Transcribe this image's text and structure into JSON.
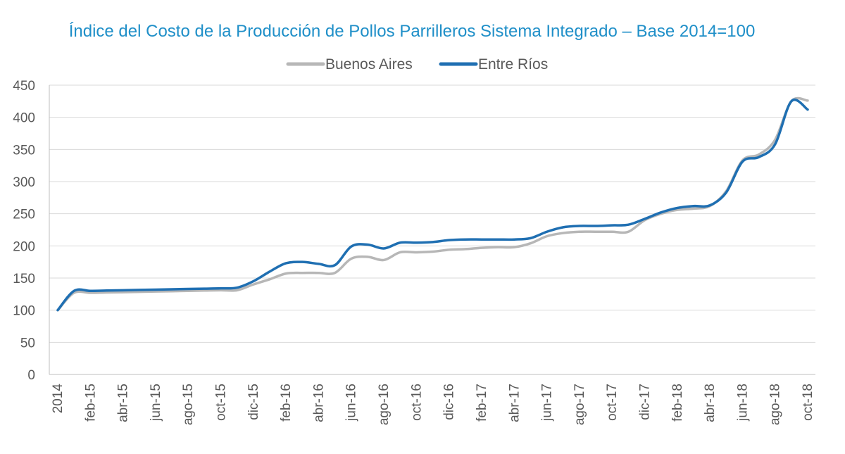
{
  "chart_data": {
    "type": "line",
    "title": "Índice del Costo de la Producción de Pollos Parrilleros Sistema Integrado – Base 2014=100",
    "xlabel": "",
    "ylabel": "",
    "ylim": [
      0,
      450
    ],
    "yticks": [
      0,
      50,
      100,
      150,
      200,
      250,
      300,
      350,
      400,
      450
    ],
    "grid": true,
    "legend_position": "top-center",
    "xtick_labels": [
      "2014",
      "feb-15",
      "abr-15",
      "jun-15",
      "ago-15",
      "oct-15",
      "dic-15",
      "feb-16",
      "abr-16",
      "jun-16",
      "ago-16",
      "oct-16",
      "dic-16",
      "feb-17",
      "abr-17",
      "jun-17",
      "ago-17",
      "oct-17",
      "dic-17",
      "feb-18",
      "abr-18",
      "jun-18",
      "ago-18",
      "oct-18"
    ],
    "categories": [
      "2014",
      "ene-15",
      "feb-15",
      "mar-15",
      "abr-15",
      "may-15",
      "jun-15",
      "jul-15",
      "ago-15",
      "sep-15",
      "oct-15",
      "nov-15",
      "dic-15",
      "ene-16",
      "feb-16",
      "mar-16",
      "abr-16",
      "may-16",
      "jun-16",
      "jul-16",
      "ago-16",
      "sep-16",
      "oct-16",
      "nov-16",
      "dic-16",
      "ene-17",
      "feb-17",
      "mar-17",
      "abr-17",
      "may-17",
      "jun-17",
      "jul-17",
      "ago-17",
      "sep-17",
      "oct-17",
      "nov-17",
      "dic-17",
      "ene-18",
      "feb-18",
      "mar-18",
      "abr-18",
      "may-18",
      "jun-18",
      "jul-18",
      "ago-18",
      "sep-18",
      "oct-18"
    ],
    "series": [
      {
        "name": "Buenos Aires",
        "color": "#b7b7b7",
        "values": [
          100,
          127,
          127,
          127.5,
          128,
          128.5,
          129,
          129.5,
          130,
          130.5,
          131,
          131,
          140,
          148,
          157,
          158,
          158,
          158,
          180,
          183,
          178,
          190,
          190,
          191,
          194,
          195,
          197,
          198,
          198,
          204,
          215,
          220,
          222,
          222,
          222,
          222,
          240,
          250,
          256,
          258,
          262,
          285,
          333,
          342,
          365,
          425,
          426
        ]
      },
      {
        "name": "Entre Ríos",
        "color": "#1f6fb2",
        "values": [
          100,
          130,
          130,
          130.5,
          131,
          131.5,
          132,
          132.5,
          133,
          133.5,
          134,
          135,
          145,
          160,
          173,
          175,
          172,
          170,
          199,
          202,
          196,
          205,
          205,
          206,
          209,
          210,
          210,
          210,
          210,
          212,
          222,
          229,
          231,
          231,
          232,
          233,
          242,
          252,
          259,
          262,
          263,
          283,
          331,
          338,
          358,
          425,
          412
        ]
      }
    ]
  }
}
